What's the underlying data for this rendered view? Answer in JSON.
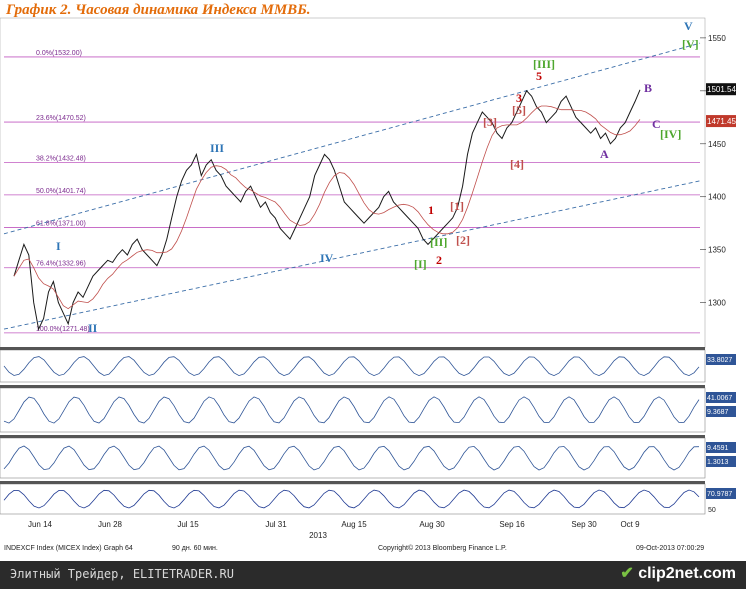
{
  "title": "График 2.   Часовая динамика Индекса ММВБ.",
  "chart_data": {
    "type": "line",
    "ylim": [
      1260,
      1565
    ],
    "y_ticks": [
      1300,
      1350,
      1400,
      1450,
      1500,
      1550
    ],
    "x_ticks": [
      "Jun 14",
      "Jun 28",
      "Jul 15",
      "Jul 31",
      "Aug 15",
      "Aug 30",
      "Sep 16",
      "Sep 30",
      "Oct 9"
    ],
    "year_label": "2013",
    "last_price": "1501.54",
    "level_1471": "1471.45",
    "close": [
      1325,
      1340,
      1355,
      1345,
      1300,
      1275,
      1285,
      1310,
      1320,
      1300,
      1290,
      1280,
      1300,
      1310,
      1305,
      1315,
      1325,
      1330,
      1335,
      1340,
      1338,
      1345,
      1350,
      1345,
      1355,
      1360,
      1350,
      1345,
      1340,
      1335,
      1345,
      1360,
      1380,
      1400,
      1415,
      1425,
      1430,
      1440,
      1420,
      1430,
      1435,
      1425,
      1420,
      1410,
      1405,
      1400,
      1395,
      1405,
      1410,
      1400,
      1390,
      1395,
      1385,
      1380,
      1370,
      1365,
      1360,
      1370,
      1380,
      1390,
      1400,
      1420,
      1430,
      1440,
      1435,
      1425,
      1410,
      1395,
      1390,
      1385,
      1380,
      1375,
      1380,
      1385,
      1390,
      1400,
      1405,
      1395,
      1390,
      1385,
      1380,
      1375,
      1370,
      1360,
      1355,
      1360,
      1365,
      1370,
      1375,
      1380,
      1390,
      1410,
      1440,
      1460,
      1470,
      1480,
      1475,
      1470,
      1460,
      1455,
      1465,
      1470,
      1480,
      1490,
      1500,
      1495,
      1485,
      1480,
      1470,
      1475,
      1480,
      1490,
      1495,
      1485,
      1475,
      1470,
      1465,
      1460,
      1465,
      1455,
      1460,
      1450,
      1455,
      1465,
      1470,
      1480,
      1490,
      1501
    ],
    "fib_levels": [
      {
        "label": "0.0%(1532.00)",
        "value": 1532.0
      },
      {
        "label": "23.6%(1470.52)",
        "value": 1470.52
      },
      {
        "label": "38.2%(1432.48)",
        "value": 1432.48
      },
      {
        "label": "50.0%(1401.74)",
        "value": 1401.74
      },
      {
        "label": "61.8%(1371.00)",
        "value": 1371.0
      },
      {
        "label": "76.4%(1332.96)",
        "value": 1332.96
      },
      {
        "label": "100.0%(1271.48)",
        "value": 1271.48
      }
    ],
    "wave_labels": [
      {
        "text": "I",
        "color": "#2e75b6"
      },
      {
        "text": "II",
        "color": "#2e75b6"
      },
      {
        "text": "III",
        "color": "#2e75b6"
      },
      {
        "text": "IV",
        "color": "#2e75b6"
      },
      {
        "text": "V",
        "color": "#2e75b6"
      },
      {
        "text": "[I]",
        "color": "#4ea72e"
      },
      {
        "text": "[II]",
        "color": "#4ea72e"
      },
      {
        "text": "[III]",
        "color": "#4ea72e"
      },
      {
        "text": "[IV]",
        "color": "#4ea72e"
      },
      {
        "text": "[V]",
        "color": "#4ea72e"
      },
      {
        "text": "1",
        "color": "#c00000"
      },
      {
        "text": "2",
        "color": "#c00000"
      },
      {
        "text": "3",
        "color": "#c00000"
      },
      {
        "text": "5",
        "color": "#c00000"
      },
      {
        "text": "[1]",
        "color": "#c0504d"
      },
      {
        "text": "[2]",
        "color": "#c0504d"
      },
      {
        "text": "[3]",
        "color": "#c0504d"
      },
      {
        "text": "[4]",
        "color": "#c0504d"
      },
      {
        "text": "[5]",
        "color": "#c0504d"
      },
      {
        "text": "A",
        "color": "#7030a0"
      },
      {
        "text": "B",
        "color": "#7030a0"
      },
      {
        "text": "C",
        "color": "#7030a0"
      }
    ],
    "indicators": [
      {
        "name": "volume",
        "readouts": [
          "33.8027"
        ]
      },
      {
        "name": "oscillator",
        "readouts": [
          "41.0067",
          "9.3687"
        ]
      },
      {
        "name": "macd",
        "readouts": [
          "9.4591",
          "1.3013"
        ]
      },
      {
        "name": "rsi",
        "readouts": [
          "70.9787"
        ],
        "tick": "50"
      }
    ]
  },
  "footer": {
    "index_info": "INDEXCF Index (MICEX Index) Graph 64",
    "period": "90 дн. 60 мин.",
    "copyright": "Copyright© 2013 Bloomberg Finance L.P.",
    "timestamp": "09-Oct-2013 07:00:29",
    "watermark": "Элитный Трейдер, ELITETRADER.RU",
    "brand_main": "clip2",
    "brand_suffix": "net.com"
  }
}
